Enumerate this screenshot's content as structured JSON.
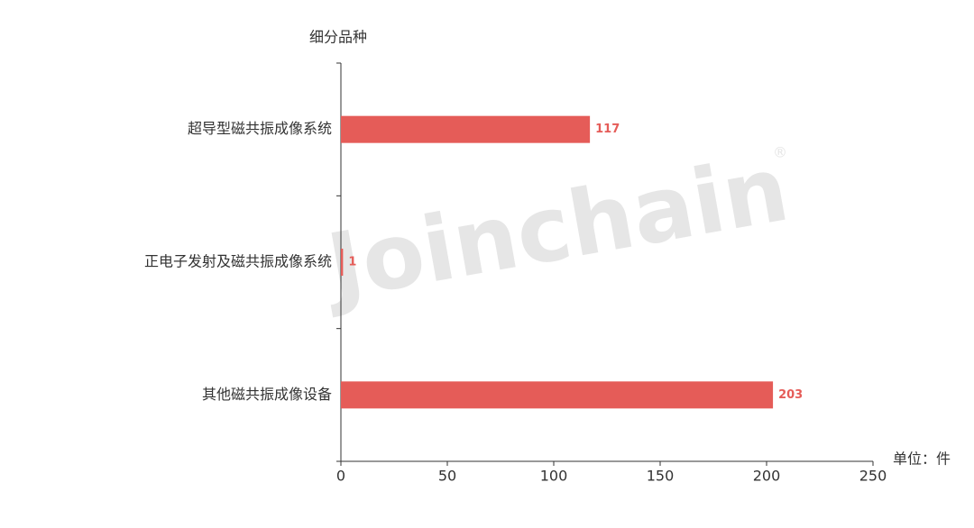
{
  "chart_data": {
    "type": "bar",
    "orientation": "horizontal",
    "y_axis_label": "细分品种",
    "x_axis_label": "单位：件",
    "categories": [
      "超导型磁共振成像系统",
      "正电子发射及磁共振成像系统",
      "其他磁共振成像设备"
    ],
    "values": [
      117,
      1,
      203
    ],
    "color": "#e55c58",
    "xlim": [
      0,
      250
    ],
    "xticks": [
      0,
      50,
      100,
      150,
      200,
      250
    ],
    "watermark": "Joinchain",
    "watermark_symbol": "®"
  }
}
